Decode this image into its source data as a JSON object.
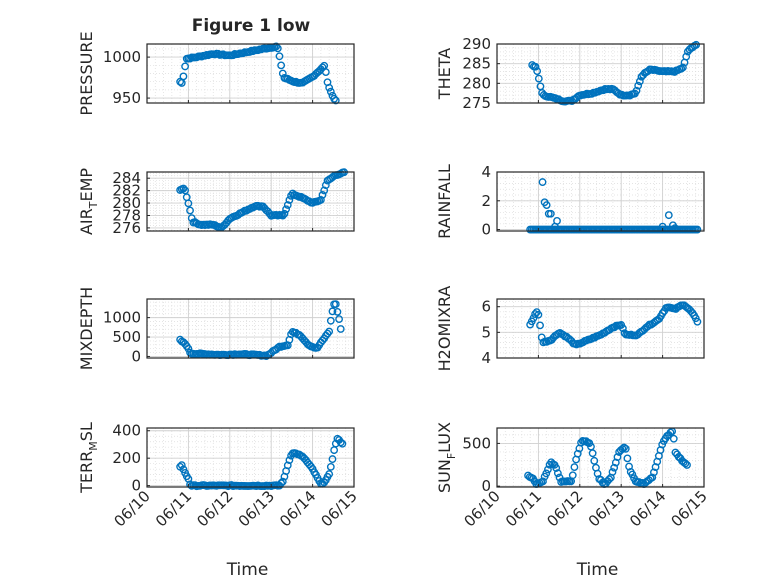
{
  "figure": {
    "title": "Figure 1 low",
    "marker_color": "#0072BD",
    "grid": true
  },
  "chart_data": [
    {
      "type": "scatter",
      "ylabel": "PRESSURE",
      "xlabel": "",
      "title": "Figure 1 low",
      "xlim": [
        0,
        5
      ],
      "ylim": [
        944,
        1016
      ],
      "yticks": [
        950,
        1000
      ],
      "ytick_labels": [
        "950",
        "1000"
      ],
      "x_tick_labels_shown": false,
      "anchors": [
        [
          0.8,
          970
        ],
        [
          0.85,
          968
        ],
        [
          0.95,
          998
        ],
        [
          1.2,
          1000
        ],
        [
          1.6,
          1004
        ],
        [
          2.0,
          1002
        ],
        [
          2.4,
          1006
        ],
        [
          2.8,
          1010
        ],
        [
          3.15,
          1013
        ],
        [
          3.3,
          975
        ],
        [
          3.55,
          970
        ],
        [
          3.75,
          968
        ],
        [
          4.0,
          976
        ],
        [
          4.3,
          990
        ],
        [
          4.35,
          970
        ],
        [
          4.5,
          950
        ],
        [
          4.6,
          946
        ]
      ]
    },
    {
      "type": "scatter",
      "ylabel": "THETA",
      "xlabel": "",
      "xlim": [
        0,
        5
      ],
      "ylim": [
        275,
        290
      ],
      "yticks": [
        275,
        280,
        285,
        290
      ],
      "ytick_labels": [
        "275",
        "280",
        "285",
        "290"
      ],
      "x_tick_labels_shown": false,
      "anchors": [
        [
          0.85,
          284.5
        ],
        [
          0.95,
          284
        ],
        [
          1.1,
          277
        ],
        [
          1.3,
          276.5
        ],
        [
          1.6,
          275.5
        ],
        [
          1.8,
          275.5
        ],
        [
          2.0,
          277
        ],
        [
          2.3,
          277.5
        ],
        [
          2.6,
          278.5
        ],
        [
          2.8,
          278.5
        ],
        [
          3.0,
          277
        ],
        [
          3.2,
          277
        ],
        [
          3.35,
          277.5
        ],
        [
          3.5,
          282
        ],
        [
          3.7,
          283.5
        ],
        [
          4.0,
          283
        ],
        [
          4.3,
          283
        ],
        [
          4.5,
          284
        ],
        [
          4.6,
          288
        ],
        [
          4.75,
          289.5
        ],
        [
          4.85,
          290
        ]
      ]
    },
    {
      "type": "scatter",
      "ylabel_main": "AIR",
      "ylabel_sub": "T",
      "ylabel_rest": "EMP",
      "xlabel": "",
      "xlim": [
        0,
        5
      ],
      "ylim": [
        275.5,
        285
      ],
      "yticks": [
        276,
        278,
        280,
        282,
        284
      ],
      "ytick_labels": [
        "276",
        "278",
        "280",
        "282",
        "284"
      ],
      "x_tick_labels_shown": false,
      "anchors": [
        [
          0.8,
          282
        ],
        [
          0.9,
          282.5
        ],
        [
          1.0,
          280
        ],
        [
          1.1,
          277
        ],
        [
          1.3,
          276.5
        ],
        [
          1.6,
          276.5
        ],
        [
          1.8,
          276
        ],
        [
          2.0,
          277.5
        ],
        [
          2.3,
          278.5
        ],
        [
          2.6,
          279.5
        ],
        [
          2.8,
          279.5
        ],
        [
          3.0,
          278
        ],
        [
          3.3,
          278
        ],
        [
          3.5,
          281.5
        ],
        [
          3.7,
          281
        ],
        [
          4.0,
          280
        ],
        [
          4.2,
          280.5
        ],
        [
          4.35,
          283.5
        ],
        [
          4.55,
          284.5
        ],
        [
          4.8,
          285
        ]
      ]
    },
    {
      "type": "scatter",
      "ylabel": "RAINFALL",
      "xlabel": "",
      "xlim": [
        0,
        5
      ],
      "ylim": [
        -0.1,
        4
      ],
      "yticks": [
        0,
        2,
        4
      ],
      "ytick_labels": [
        "0",
        "2",
        "4"
      ],
      "x_tick_labels_shown": false,
      "spikes": [
        [
          1.1,
          3.3
        ],
        [
          1.15,
          1.9
        ],
        [
          1.2,
          1.7
        ],
        [
          1.25,
          1.1
        ],
        [
          1.3,
          1.1
        ],
        [
          1.45,
          0.6
        ],
        [
          1.4,
          0.2
        ],
        [
          4.15,
          1.0
        ],
        [
          4.25,
          0.3
        ],
        [
          4.3,
          0.1
        ],
        [
          4.0,
          0.2
        ]
      ],
      "baseline_range": [
        0.8,
        4.85
      ]
    },
    {
      "type": "scatter",
      "ylabel": "MIXDEPTH",
      "xlabel": "",
      "xlim": [
        0,
        5
      ],
      "ylim": [
        -40,
        1480
      ],
      "yticks": [
        0,
        500,
        1000
      ],
      "ytick_labels": [
        "0",
        "500",
        "1000"
      ],
      "x_tick_labels_shown": false,
      "anchors": [
        [
          0.8,
          420
        ],
        [
          0.85,
          380
        ],
        [
          0.95,
          300
        ],
        [
          1.05,
          80
        ],
        [
          1.4,
          60
        ],
        [
          1.8,
          40
        ],
        [
          2.2,
          60
        ],
        [
          2.6,
          40
        ],
        [
          2.9,
          20
        ],
        [
          3.2,
          250
        ],
        [
          3.4,
          300
        ],
        [
          3.5,
          640
        ],
        [
          3.7,
          550
        ],
        [
          3.9,
          300
        ],
        [
          4.1,
          200
        ],
        [
          4.3,
          500
        ],
        [
          4.4,
          650
        ],
        [
          4.5,
          1300
        ],
        [
          4.55,
          1400
        ],
        [
          4.65,
          900
        ],
        [
          4.7,
          600
        ]
      ]
    },
    {
      "type": "scatter",
      "ylabel": "H2OMIXRA",
      "xlabel": "",
      "xlim": [
        0,
        5
      ],
      "ylim": [
        4,
        6.3
      ],
      "yticks": [
        4,
        5,
        6
      ],
      "ytick_labels": [
        "4",
        "5",
        "6"
      ],
      "x_tick_labels_shown": false,
      "anchors": [
        [
          0.8,
          5.3
        ],
        [
          0.95,
          5.8
        ],
        [
          1.0,
          5.7
        ],
        [
          1.1,
          4.6
        ],
        [
          1.3,
          4.7
        ],
        [
          1.5,
          5.0
        ],
        [
          1.7,
          4.8
        ],
        [
          1.9,
          4.5
        ],
        [
          2.2,
          4.7
        ],
        [
          2.5,
          4.9
        ],
        [
          2.8,
          5.2
        ],
        [
          3.0,
          5.3
        ],
        [
          3.1,
          4.9
        ],
        [
          3.4,
          4.9
        ],
        [
          3.6,
          5.2
        ],
        [
          3.9,
          5.5
        ],
        [
          4.1,
          6.0
        ],
        [
          4.3,
          5.9
        ],
        [
          4.5,
          6.1
        ],
        [
          4.7,
          5.8
        ],
        [
          4.85,
          5.4
        ]
      ]
    },
    {
      "type": "scatter",
      "ylabel_main": "TERR",
      "ylabel_sub": "M",
      "ylabel_rest": "SL",
      "xlabel": "Time",
      "xlim": [
        0,
        5
      ],
      "ylim": [
        -10,
        420
      ],
      "yticks": [
        0,
        200,
        400
      ],
      "ytick_labels": [
        "0",
        "200",
        "400"
      ],
      "x_tick_labels_shown": true,
      "anchors": [
        [
          0.8,
          140
        ],
        [
          0.85,
          150
        ],
        [
          0.9,
          100
        ],
        [
          1.0,
          50
        ],
        [
          1.05,
          0
        ],
        [
          3.2,
          0
        ],
        [
          3.3,
          40
        ],
        [
          3.4,
          150
        ],
        [
          3.5,
          240
        ],
        [
          3.65,
          230
        ],
        [
          3.8,
          200
        ],
        [
          4.0,
          120
        ],
        [
          4.2,
          10
        ],
        [
          4.3,
          30
        ],
        [
          4.4,
          80
        ],
        [
          4.55,
          300
        ],
        [
          4.6,
          340
        ],
        [
          4.75,
          300
        ]
      ]
    },
    {
      "type": "scatter",
      "ylabel_main": "SUN",
      "ylabel_sub": "F",
      "ylabel_rest": "LUX",
      "xlabel": "Time",
      "xlim": [
        0,
        5
      ],
      "ylim": [
        -10,
        680
      ],
      "yticks": [
        0,
        500
      ],
      "ytick_labels": [
        "0",
        "500"
      ],
      "x_tick_labels_shown": true,
      "anchors": [
        [
          0.75,
          120
        ],
        [
          0.85,
          100
        ],
        [
          0.95,
          20
        ],
        [
          1.1,
          50
        ],
        [
          1.3,
          280
        ],
        [
          1.4,
          250
        ],
        [
          1.55,
          50
        ],
        [
          1.8,
          60
        ],
        [
          1.9,
          300
        ],
        [
          2.05,
          540
        ],
        [
          2.25,
          500
        ],
        [
          2.45,
          100
        ],
        [
          2.6,
          20
        ],
        [
          2.75,
          100
        ],
        [
          2.95,
          400
        ],
        [
          3.1,
          460
        ],
        [
          3.2,
          200
        ],
        [
          3.35,
          50
        ],
        [
          3.55,
          30
        ],
        [
          3.75,
          100
        ],
        [
          4.0,
          500
        ],
        [
          4.1,
          580
        ],
        [
          4.25,
          650
        ],
        [
          4.3,
          400
        ],
        [
          4.5,
          280
        ],
        [
          4.6,
          250
        ]
      ]
    }
  ],
  "x_tick_labels": [
    "06/10",
    "06/11",
    "06/12",
    "06/13",
    "06/14",
    "06/15"
  ]
}
